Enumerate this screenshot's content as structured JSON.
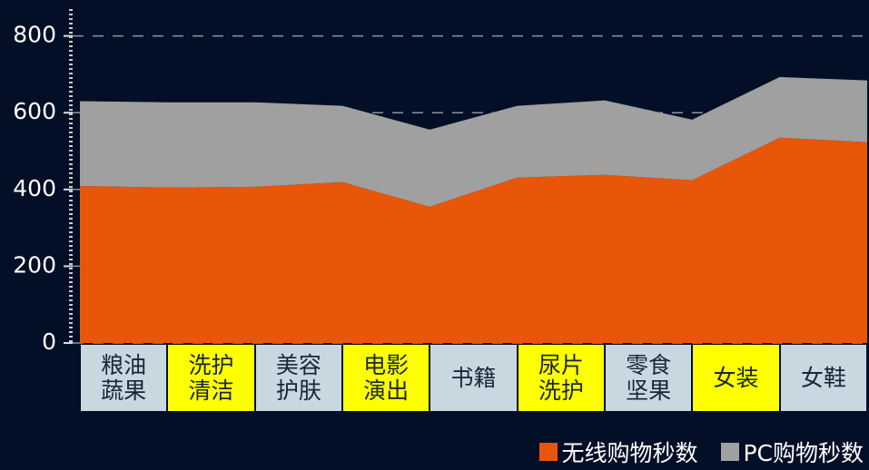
{
  "chart_data": {
    "type": "stacked-area",
    "categories": [
      "粮油蔬果",
      "洗护清洁",
      "美容护肤",
      "电影演出",
      "书籍",
      "尿片洗护",
      "零食坚果",
      "女装",
      "女鞋",
      null
    ],
    "series": [
      {
        "name": "无线购物秒数",
        "color": "#e8560a",
        "values": [
          409,
          405,
          407,
          419,
          355,
          431,
          438,
          424,
          535,
          523
        ]
      },
      {
        "name": "PC购物秒数",
        "color": "#a0a0a0",
        "values": [
          221,
          222,
          220,
          199,
          201,
          187,
          194,
          158,
          158,
          161
        ]
      }
    ],
    "ylim": [
      0,
      870
    ],
    "yticks": [
      0,
      200,
      400,
      600,
      800
    ],
    "grid": true,
    "category_colors": [
      "#c9d7e1",
      "#ffff00"
    ]
  }
}
